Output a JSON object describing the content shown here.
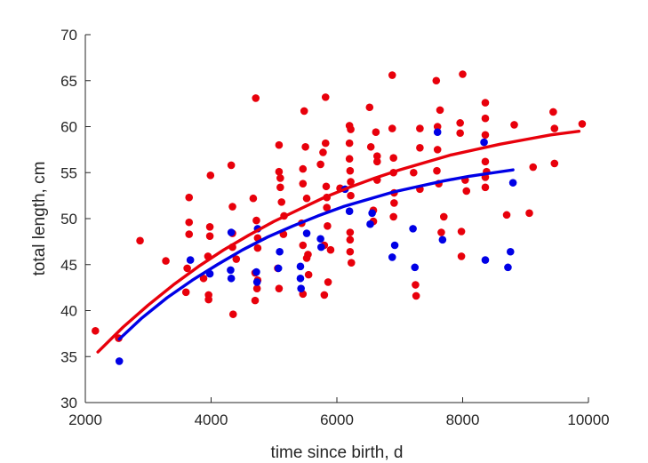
{
  "chart_data": {
    "type": "scatter",
    "xlabel": "time since birth, d",
    "ylabel": "total length, cm",
    "xlim": [
      2000,
      10000
    ],
    "ylim": [
      30,
      70
    ],
    "xticks": [
      2000,
      4000,
      6000,
      8000,
      10000
    ],
    "yticks": [
      30,
      35,
      40,
      45,
      50,
      55,
      60,
      65,
      70
    ],
    "grid": false,
    "legend": "none",
    "series": [
      {
        "color": "#e8000b",
        "points": [
          [
            2160,
            37.8
          ],
          [
            2530,
            37.0
          ],
          [
            2870,
            47.6
          ],
          [
            3280,
            45.4
          ],
          [
            3600,
            42.0
          ],
          [
            3620,
            44.6
          ],
          [
            3650,
            52.3
          ],
          [
            3650,
            49.6
          ],
          [
            3650,
            48.3
          ],
          [
            3880,
            43.5
          ],
          [
            3950,
            45.9
          ],
          [
            3960,
            41.7
          ],
          [
            3960,
            41.2
          ],
          [
            3980,
            49.1
          ],
          [
            3980,
            48.1
          ],
          [
            3990,
            54.7
          ],
          [
            4320,
            55.8
          ],
          [
            4340,
            51.3
          ],
          [
            4340,
            48.4
          ],
          [
            4340,
            46.9
          ],
          [
            4350,
            39.6
          ],
          [
            4400,
            45.6
          ],
          [
            4670,
            52.2
          ],
          [
            4700,
            44.1
          ],
          [
            4700,
            41.1
          ],
          [
            4710,
            63.1
          ],
          [
            4720,
            49.8
          ],
          [
            4740,
            47.9
          ],
          [
            4740,
            46.8
          ],
          [
            4740,
            43.3
          ],
          [
            4730,
            42.4
          ],
          [
            5060,
            44.6
          ],
          [
            5080,
            42.4
          ],
          [
            5080,
            58.0
          ],
          [
            5080,
            55.1
          ],
          [
            5100,
            54.4
          ],
          [
            5100,
            53.4
          ],
          [
            5120,
            51.8
          ],
          [
            5160,
            50.3
          ],
          [
            5150,
            48.3
          ],
          [
            5440,
            49.5
          ],
          [
            5460,
            55.4
          ],
          [
            5460,
            53.8
          ],
          [
            5460,
            47.1
          ],
          [
            5460,
            41.8
          ],
          [
            5480,
            61.7
          ],
          [
            5500,
            57.8
          ],
          [
            5520,
            52.2
          ],
          [
            5540,
            46.1
          ],
          [
            5520,
            45.7
          ],
          [
            5550,
            43.9
          ],
          [
            5740,
            55.9
          ],
          [
            5780,
            57.2
          ],
          [
            5800,
            47.1
          ],
          [
            5800,
            41.7
          ],
          [
            5820,
            63.2
          ],
          [
            5820,
            58.2
          ],
          [
            5830,
            53.5
          ],
          [
            5840,
            52.3
          ],
          [
            5840,
            51.2
          ],
          [
            5850,
            49.2
          ],
          [
            5860,
            43.1
          ],
          [
            5900,
            46.6
          ],
          [
            6050,
            53.3
          ],
          [
            6200,
            60.1
          ],
          [
            6200,
            58.2
          ],
          [
            6200,
            56.5
          ],
          [
            6210,
            55.2
          ],
          [
            6220,
            54.0
          ],
          [
            6220,
            52.5
          ],
          [
            6210,
            48.5
          ],
          [
            6210,
            47.7
          ],
          [
            6210,
            46.4
          ],
          [
            6230,
            45.2
          ],
          [
            6220,
            59.7
          ],
          [
            6520,
            62.1
          ],
          [
            6540,
            57.8
          ],
          [
            6580,
            50.9
          ],
          [
            6580,
            49.7
          ],
          [
            6620,
            59.4
          ],
          [
            6640,
            56.8
          ],
          [
            6640,
            56.2
          ],
          [
            6640,
            54.2
          ],
          [
            6880,
            65.6
          ],
          [
            6880,
            59.8
          ],
          [
            6900,
            56.6
          ],
          [
            6900,
            55.0
          ],
          [
            6910,
            52.8
          ],
          [
            6910,
            51.7
          ],
          [
            6900,
            50.2
          ],
          [
            7220,
            55.0
          ],
          [
            7250,
            42.8
          ],
          [
            7260,
            41.6
          ],
          [
            7320,
            59.8
          ],
          [
            7320,
            57.7
          ],
          [
            7320,
            53.2
          ],
          [
            7580,
            65.0
          ],
          [
            7600,
            60.0
          ],
          [
            7600,
            57.5
          ],
          [
            7590,
            55.2
          ],
          [
            7620,
            53.8
          ],
          [
            7640,
            61.8
          ],
          [
            7660,
            48.5
          ],
          [
            7700,
            50.2
          ],
          [
            7960,
            60.4
          ],
          [
            7960,
            59.3
          ],
          [
            7980,
            45.9
          ],
          [
            7980,
            48.6
          ],
          [
            8000,
            65.7
          ],
          [
            8040,
            54.2
          ],
          [
            8060,
            53.0
          ],
          [
            8360,
            60.9
          ],
          [
            8360,
            62.6
          ],
          [
            8360,
            59.1
          ],
          [
            8360,
            56.2
          ],
          [
            8380,
            55.1
          ],
          [
            8360,
            54.5
          ],
          [
            8360,
            53.4
          ],
          [
            8700,
            50.4
          ],
          [
            8820,
            60.2
          ],
          [
            9060,
            50.6
          ],
          [
            9120,
            55.6
          ],
          [
            9440,
            61.6
          ],
          [
            9460,
            56.0
          ],
          [
            9460,
            59.8
          ],
          [
            9900,
            60.3
          ]
        ],
        "fit": [
          [
            2200,
            35.5
          ],
          [
            2600,
            38.2
          ],
          [
            3000,
            40.6
          ],
          [
            3400,
            42.8
          ],
          [
            3800,
            44.8
          ],
          [
            4200,
            46.6
          ],
          [
            4600,
            48.2
          ],
          [
            5000,
            49.7
          ],
          [
            5400,
            51.0
          ],
          [
            5800,
            52.3
          ],
          [
            6200,
            53.4
          ],
          [
            6600,
            54.4
          ],
          [
            7000,
            55.3
          ],
          [
            7400,
            56.1
          ],
          [
            7800,
            56.9
          ],
          [
            8200,
            57.5
          ],
          [
            8600,
            58.1
          ],
          [
            9000,
            58.6
          ],
          [
            9400,
            59.1
          ],
          [
            9850,
            59.5
          ]
        ]
      },
      {
        "color": "#0000e6",
        "points": [
          [
            2540,
            34.5
          ],
          [
            3670,
            45.5
          ],
          [
            3980,
            44.0
          ],
          [
            4310,
            44.4
          ],
          [
            4320,
            43.5
          ],
          [
            4320,
            48.5
          ],
          [
            4720,
            44.2
          ],
          [
            4730,
            43.1
          ],
          [
            4740,
            48.9
          ],
          [
            5070,
            44.6
          ],
          [
            5090,
            46.4
          ],
          [
            5420,
            44.8
          ],
          [
            5420,
            43.5
          ],
          [
            5430,
            42.4
          ],
          [
            5520,
            48.4
          ],
          [
            5740,
            47.8
          ],
          [
            5750,
            46.9
          ],
          [
            6130,
            53.2
          ],
          [
            6200,
            50.8
          ],
          [
            6530,
            49.4
          ],
          [
            6560,
            50.6
          ],
          [
            6880,
            45.8
          ],
          [
            6920,
            47.1
          ],
          [
            7210,
            48.9
          ],
          [
            7240,
            44.7
          ],
          [
            7600,
            59.4
          ],
          [
            7680,
            47.7
          ],
          [
            8340,
            58.3
          ],
          [
            8360,
            45.5
          ],
          [
            8720,
            44.7
          ],
          [
            8760,
            46.4
          ],
          [
            8800,
            53.9
          ]
        ],
        "fit": [
          [
            2540,
            36.9
          ],
          [
            2900,
            39.2
          ],
          [
            3300,
            41.4
          ],
          [
            3700,
            43.3
          ],
          [
            4100,
            45.0
          ],
          [
            4500,
            46.6
          ],
          [
            4900,
            48.0
          ],
          [
            5300,
            49.2
          ],
          [
            5700,
            50.3
          ],
          [
            6100,
            51.3
          ],
          [
            6500,
            52.1
          ],
          [
            6900,
            52.9
          ],
          [
            7300,
            53.5
          ],
          [
            7700,
            54.1
          ],
          [
            8100,
            54.6
          ],
          [
            8500,
            55.0
          ],
          [
            8800,
            55.3
          ]
        ]
      }
    ]
  }
}
